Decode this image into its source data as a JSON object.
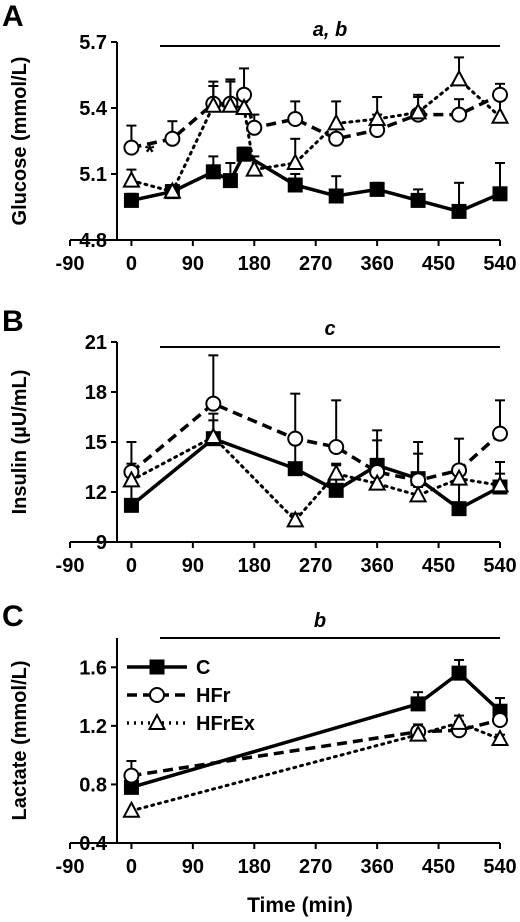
{
  "panels": {
    "A": {
      "letter": "A",
      "sig": "a, b"
    },
    "B": {
      "letter": "B",
      "sig": "c"
    },
    "C": {
      "letter": "C",
      "sig": "b"
    }
  },
  "star": "*",
  "xaxis_title": "Time (min)",
  "legend": [
    "C",
    "HFr",
    "HFrEx"
  ],
  "chart_data": [
    {
      "type": "line",
      "panel": "A",
      "ylabel": "Glucose (mmol/L)",
      "xlabel": "",
      "xlim": [
        -90,
        540
      ],
      "ylim": [
        4.8,
        5.7
      ],
      "xticks": [
        -90,
        0,
        90,
        180,
        270,
        360,
        450,
        540
      ],
      "yticks": [
        "4.8",
        "5.1",
        "5.4",
        "5.7"
      ],
      "annotation": "a, b",
      "series": [
        {
          "name": "C",
          "marker": "square",
          "dash": "solid",
          "x": [
            0,
            60,
            120,
            145,
            165,
            240,
            300,
            360,
            420,
            480,
            540
          ],
          "y": [
            4.98,
            5.02,
            5.11,
            5.07,
            5.19,
            5.05,
            5.0,
            5.03,
            4.98,
            4.93,
            5.01
          ],
          "err": [
            0.03,
            0.03,
            0.07,
            0.08,
            0.03,
            0.05,
            0.09,
            0.03,
            0.05,
            0.13,
            0.14
          ]
        },
        {
          "name": "HFr",
          "marker": "circle",
          "dash": "dashed",
          "x": [
            0,
            60,
            120,
            145,
            165,
            180,
            240,
            300,
            360,
            420,
            480,
            540
          ],
          "y": [
            5.22,
            5.26,
            5.42,
            5.42,
            5.46,
            5.31,
            5.35,
            5.26,
            5.3,
            5.37,
            5.37,
            5.46
          ],
          "err": [
            0.1,
            0.08,
            0.1,
            0.1,
            0.12,
            0.06,
            0.08,
            0.05,
            0.07,
            0.08,
            0.07,
            0.05
          ]
        },
        {
          "name": "HFrEx",
          "marker": "triangle",
          "dash": "dotted",
          "x": [
            0,
            60,
            120,
            145,
            165,
            180,
            240,
            300,
            360,
            420,
            480,
            540
          ],
          "y": [
            5.07,
            5.02,
            5.41,
            5.41,
            5.4,
            5.12,
            5.15,
            5.33,
            5.35,
            5.38,
            5.53,
            5.36
          ],
          "err": [
            0.05,
            0.03,
            0.09,
            0.12,
            0.05,
            0.06,
            0.11,
            0.1,
            0.1,
            0.08,
            0.1,
            0.08
          ]
        }
      ]
    },
    {
      "type": "line",
      "panel": "B",
      "ylabel": "Insulin (µU/mL)",
      "xlabel": "",
      "xlim": [
        -90,
        540
      ],
      "ylim": [
        9,
        21
      ],
      "xticks": [
        -90,
        0,
        90,
        180,
        270,
        360,
        450,
        540
      ],
      "yticks": [
        "9",
        "12",
        "15",
        "18",
        "21"
      ],
      "annotation": "c",
      "series": [
        {
          "name": "C",
          "marker": "square",
          "dash": "solid",
          "x": [
            0,
            120,
            240,
            300,
            360,
            420,
            480,
            540
          ],
          "y": [
            11.2,
            15.2,
            13.4,
            12.1,
            13.6,
            12.8,
            11.0,
            12.3
          ],
          "err": [
            1.5,
            1.5,
            1.5,
            1.5,
            1.5,
            1.5,
            1.5,
            1.5
          ]
        },
        {
          "name": "HFr",
          "marker": "circle",
          "dash": "dashed",
          "x": [
            0,
            120,
            240,
            300,
            360,
            420,
            480,
            540
          ],
          "y": [
            13.2,
            17.3,
            15.2,
            14.7,
            13.2,
            12.7,
            13.3,
            15.5
          ],
          "err": [
            1.8,
            2.9,
            2.7,
            2.8,
            2.5,
            2.3,
            1.9,
            2.0
          ]
        },
        {
          "name": "HFrEx",
          "marker": "triangle",
          "dash": "dotted",
          "x": [
            0,
            120,
            240,
            300,
            360,
            420,
            480,
            540
          ],
          "y": [
            12.7,
            15.3,
            10.3,
            13.1,
            12.5,
            11.8,
            12.8,
            12.4
          ],
          "err": [
            1.0,
            1.0,
            0.4,
            0.6,
            0.7,
            0.5,
            0.8,
            0.7
          ]
        }
      ]
    },
    {
      "type": "line",
      "panel": "C",
      "ylabel": "Lactate (mmol/L)",
      "xlabel": "Time (min)",
      "xlim": [
        -90,
        540
      ],
      "ylim": [
        0.4,
        1.8
      ],
      "xticks": [
        -90,
        0,
        90,
        180,
        270,
        360,
        450,
        540
      ],
      "yticks": [
        "0.4",
        "0.8",
        "1.2",
        "1.6"
      ],
      "annotation": "b",
      "legend_position": "top-left",
      "series": [
        {
          "name": "C",
          "marker": "square",
          "dash": "solid",
          "x": [
            0,
            420,
            480,
            540
          ],
          "y": [
            0.78,
            1.35,
            1.56,
            1.3
          ],
          "err": [
            0.06,
            0.08,
            0.09,
            0.09
          ]
        },
        {
          "name": "HFr",
          "marker": "circle",
          "dash": "dashed",
          "x": [
            0,
            420,
            480,
            540
          ],
          "y": [
            0.86,
            1.16,
            1.17,
            1.24
          ],
          "err": [
            0.1,
            0.05,
            0.06,
            0.07
          ]
        },
        {
          "name": "HFrEx",
          "marker": "triangle",
          "dash": "dotted",
          "x": [
            0,
            420,
            480,
            540
          ],
          "y": [
            0.62,
            1.14,
            1.22,
            1.11
          ],
          "err": [
            0.0,
            0.05,
            0.05,
            0.03
          ]
        }
      ]
    }
  ]
}
